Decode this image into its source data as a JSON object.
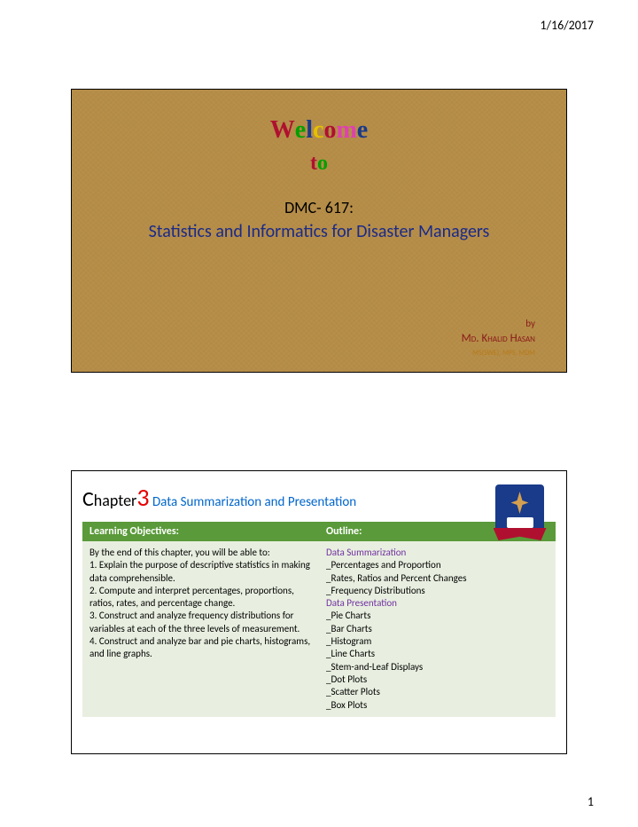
{
  "header": {
    "date": "1/16/2017",
    "pagenum": "1"
  },
  "slide1": {
    "welcome_letters": [
      {
        "ch": "W",
        "color": "#b01030"
      },
      {
        "ch": "e",
        "color": "#00a000"
      },
      {
        "ch": "l",
        "color": "#1a3a8a"
      },
      {
        "ch": "c",
        "color": "#e6c000"
      },
      {
        "ch": "o",
        "color": "#b01030"
      },
      {
        "ch": "m",
        "color": "#e040b0"
      },
      {
        "ch": "e",
        "color": "#1a3a8a"
      }
    ],
    "to_letters": [
      {
        "ch": "t",
        "color": "#b01030"
      },
      {
        "ch": "o",
        "color": "#00a000"
      }
    ],
    "code": "DMC- 617:",
    "course_title": "Statistics and Informatics for Disaster Managers",
    "by": "by",
    "author": "Md. Khalid Hasan",
    "credentials": "MS(SWE), MPS, MDM",
    "colors": {
      "title_text": "#1a2a8a",
      "author_text": "#8a1a1a",
      "cred_text": "#b87a1a"
    }
  },
  "slide2": {
    "chapter_c": "C",
    "chapter_hapter": "hapter",
    "chapter_num": "3",
    "chapter_sub": "Data Summarization and Presentation",
    "table": {
      "header_bg": "#5a9a3a",
      "cell_bg": "#e8efe0",
      "purple": "#7030a0",
      "col1_header": "Learning Objectives:",
      "col2_header": "Outline:",
      "objectives_intro": "By the end of this chapter, you will be able to:",
      "objectives": [
        "1. Explain the purpose of descriptive statistics in making data comprehensible.",
        "2. Compute and interpret percentages, proportions, ratios, rates, and percentage change.",
        "3. Construct and analyze frequency distributions for variables at each of the three levels of measurement.",
        "4. Construct and analyze bar and pie charts, histograms, and line graphs."
      ],
      "outline_section1": "Data Summarization",
      "outline_items1": [
        "_Percentages and Proportion",
        "_Rates, Ratios and Percent Changes",
        "_Frequency Distributions"
      ],
      "outline_section2": "Data Presentation",
      "outline_items2": [
        "_Pie Charts",
        "_Bar Charts",
        "_Histogram",
        "_Line Charts",
        "_Stem-and-Leaf Displays",
        "_Dot Plots",
        "_Scatter Plots",
        "_Box Plots"
      ]
    }
  }
}
